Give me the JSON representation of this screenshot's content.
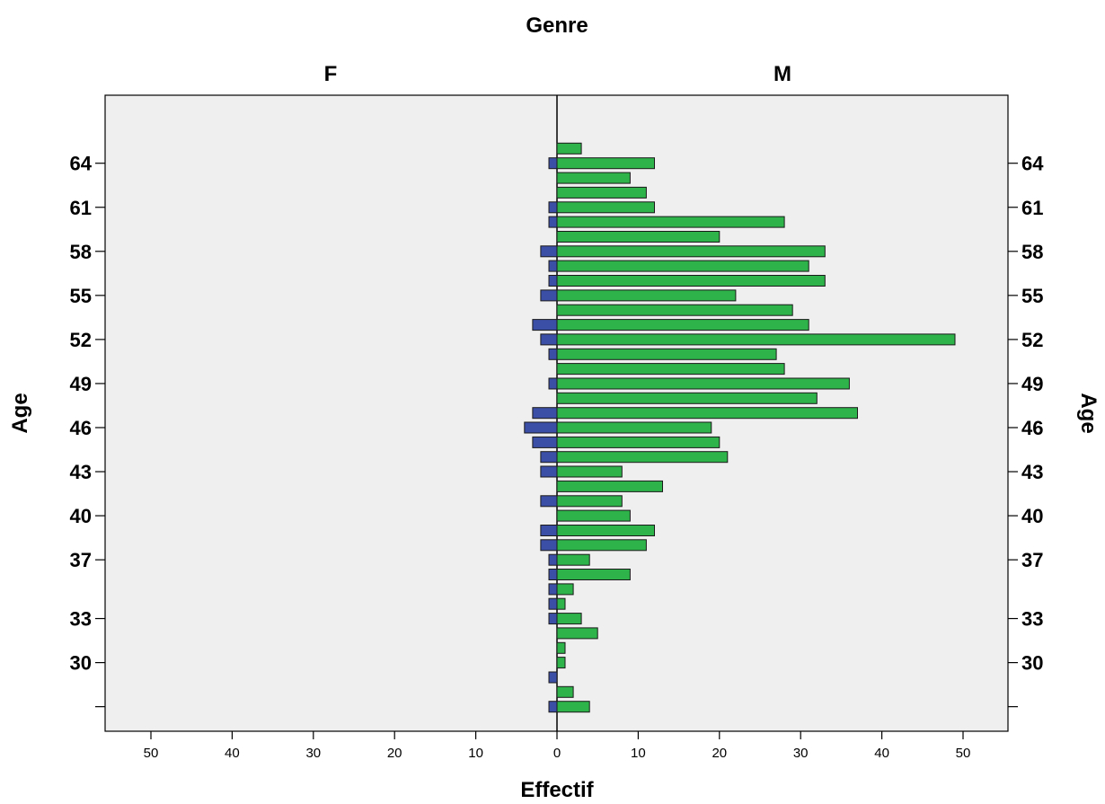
{
  "chart_data": {
    "type": "bar",
    "orientation": "horizontal",
    "layout": "population-pyramid",
    "title": "Genre",
    "xlabel": "Effectif",
    "ylabel": "Age",
    "xlim": [
      0,
      55
    ],
    "xticks": [
      0,
      10,
      20,
      30,
      40,
      50
    ],
    "ytick_labels": [
      "",
      "30",
      "33",
      "37",
      "40",
      "43",
      "46",
      "49",
      "52",
      "55",
      "58",
      "61",
      "64"
    ],
    "categories": [
      27,
      28,
      29,
      30,
      31,
      32,
      33,
      34,
      35,
      36,
      37,
      38,
      39,
      40,
      41,
      42,
      43,
      44,
      45,
      46,
      47,
      48,
      49,
      50,
      51,
      52,
      53,
      54,
      55,
      56,
      57,
      58,
      59,
      60,
      61,
      62,
      63,
      64,
      65,
      66
    ],
    "series": [
      {
        "name": "F",
        "color": "#3c4fa6",
        "values": [
          1,
          0,
          1,
          0,
          0,
          0,
          1,
          1,
          1,
          1,
          1,
          2,
          2,
          0,
          2,
          0,
          2,
          2,
          3,
          4,
          3,
          0,
          1,
          0,
          1,
          2,
          3,
          0,
          2,
          1,
          1,
          2,
          0,
          1,
          1,
          0,
          0,
          1,
          0,
          0
        ]
      },
      {
        "name": "M",
        "color": "#2db34a",
        "values": [
          4,
          2,
          0,
          1,
          1,
          5,
          3,
          1,
          2,
          9,
          4,
          11,
          12,
          9,
          8,
          13,
          8,
          21,
          20,
          19,
          37,
          32,
          36,
          28,
          27,
          49,
          31,
          29,
          22,
          33,
          31,
          33,
          20,
          28,
          12,
          11,
          9,
          12,
          3,
          0
        ]
      }
    ],
    "grid": false,
    "legend": "none",
    "colors": {
      "plot_background": "#efefef",
      "axis": "#000000"
    }
  }
}
